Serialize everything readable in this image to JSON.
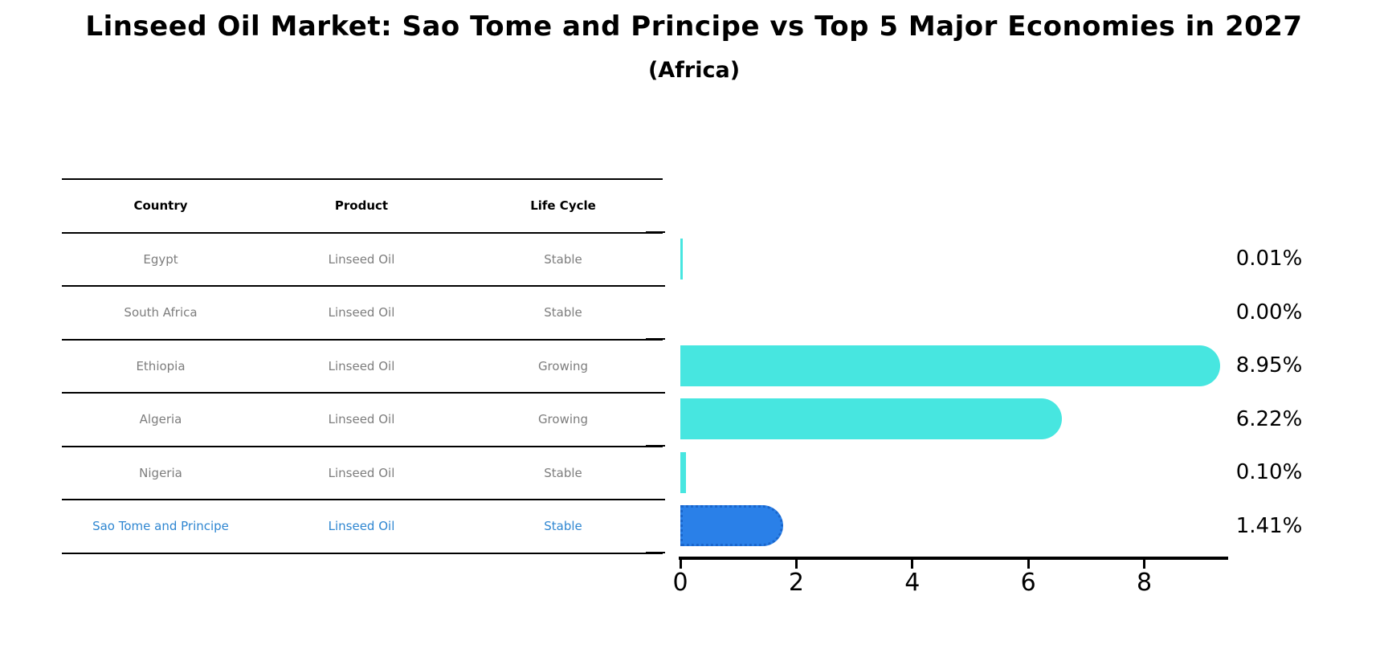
{
  "title": "Linseed Oil Market: Sao Tome and Principe vs Top 5 Major Economies in 2027",
  "subtitle": "(Africa)",
  "table": {
    "headers": [
      "Country",
      "Product",
      "Life Cycle"
    ],
    "rows": [
      {
        "country": "Egypt",
        "product": "Linseed Oil",
        "life_cycle": "Stable",
        "highlight": false
      },
      {
        "country": "South Africa",
        "product": "Linseed Oil",
        "life_cycle": "Stable",
        "highlight": false
      },
      {
        "country": "Ethiopia",
        "product": "Linseed Oil",
        "life_cycle": "Growing",
        "highlight": false
      },
      {
        "country": "Algeria",
        "product": "Linseed Oil",
        "life_cycle": "Growing",
        "highlight": false
      },
      {
        "country": "Nigeria",
        "product": "Linseed Oil",
        "life_cycle": "Stable",
        "highlight": false
      },
      {
        "country": "Sao Tome and Principe",
        "product": "Linseed Oil",
        "life_cycle": "Stable",
        "highlight": true
      }
    ]
  },
  "chart_data": {
    "type": "bar",
    "orientation": "horizontal",
    "title": "Linseed Oil Market: Sao Tome and Principe vs Top 5 Major Economies in 2027 (Africa)",
    "categories": [
      "Egypt",
      "South Africa",
      "Ethiopia",
      "Algeria",
      "Nigeria",
      "Sao Tome and Principe"
    ],
    "values": [
      0.01,
      0.0,
      8.95,
      6.22,
      0.1,
      1.41
    ],
    "value_labels": [
      "0.01%",
      "0.00%",
      "8.95%",
      "6.22%",
      "0.10%",
      "1.41%"
    ],
    "x_ticks": [
      0,
      2,
      4,
      6,
      8
    ],
    "xlim": [
      0,
      9.4
    ],
    "grid": false,
    "legend": "none",
    "highlight_index": 5,
    "bar_color": "#47e6e0",
    "highlight_bar_color": "#2a80e8",
    "highlight_border_color": "#1a66cc",
    "highlight_text_color": "#2e86d1",
    "table_text_color": "#7d7d7d",
    "value_label_color": "#000000"
  }
}
